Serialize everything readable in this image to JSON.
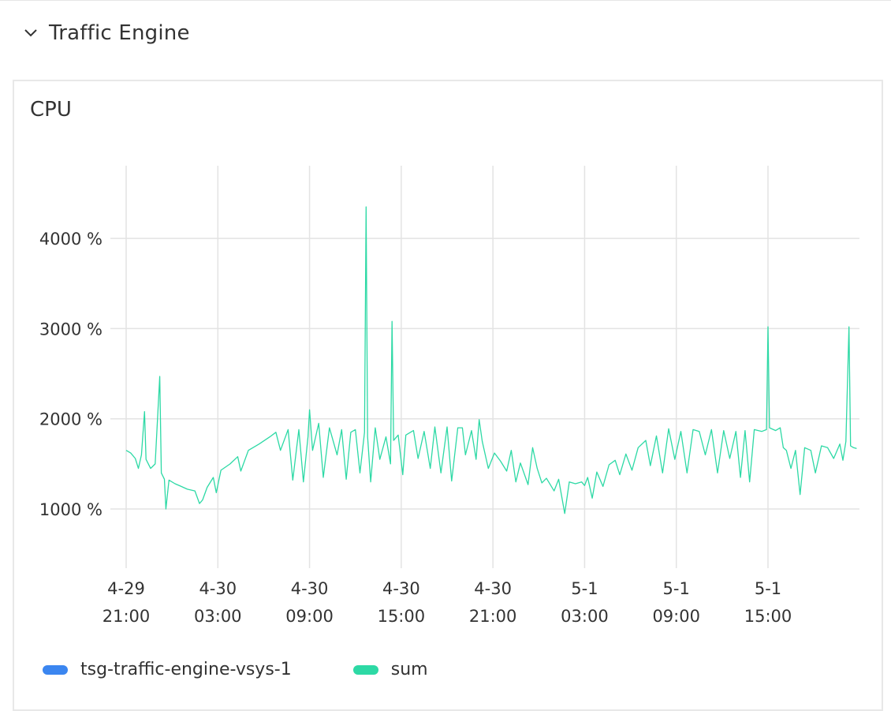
{
  "section": {
    "title": "Traffic Engine",
    "chevron_icon": "chevron-down-icon"
  },
  "panel": {
    "title": "CPU"
  },
  "colors": {
    "series_blue": "#3b86f0",
    "series_green": "#2dd9a5",
    "grid": "#e3e3e3"
  },
  "chart_data": {
    "type": "line",
    "title": "CPU",
    "xlabel": "",
    "ylabel": "",
    "y_unit": "%",
    "ylim": [
      200,
      4800
    ],
    "yticks": [
      {
        "value": 1000,
        "label": "1000 %"
      },
      {
        "value": 2000,
        "label": "2000 %"
      },
      {
        "value": 3000,
        "label": "3000 %"
      },
      {
        "value": 4000,
        "label": "4000 %"
      }
    ],
    "xlim": [
      "2024-04-29 21:00",
      "2024-05-01 23:00"
    ],
    "xticks": [
      {
        "date": "4-29",
        "time": "21:00",
        "hours": 0
      },
      {
        "date": "4-30",
        "time": "03:00",
        "hours": 6
      },
      {
        "date": "4-30",
        "time": "09:00",
        "hours": 12
      },
      {
        "date": "4-30",
        "time": "15:00",
        "hours": 18
      },
      {
        "date": "4-30",
        "time": "21:00",
        "hours": 24
      },
      {
        "date": "5-1",
        "time": "03:00",
        "hours": 30
      },
      {
        "date": "5-1",
        "time": "09:00",
        "hours": 36
      },
      {
        "date": "5-1",
        "time": "15:00",
        "hours": 42
      }
    ],
    "grid": true,
    "legend_position": "bottom-left",
    "series": [
      {
        "name": "tsg-traffic-engine-vsys-1",
        "color": "#3b86f0",
        "points": []
      },
      {
        "name": "sum",
        "color": "#2dd9a5",
        "points": [
          [
            0.0,
            1650
          ],
          [
            0.3,
            1620
          ],
          [
            0.6,
            1560
          ],
          [
            0.8,
            1450
          ],
          [
            1.0,
            1600
          ],
          [
            1.2,
            2080
          ],
          [
            1.3,
            1550
          ],
          [
            1.6,
            1450
          ],
          [
            1.9,
            1500
          ],
          [
            2.2,
            2470
          ],
          [
            2.3,
            1400
          ],
          [
            2.5,
            1330
          ],
          [
            2.6,
            1000
          ],
          [
            2.8,
            1320
          ],
          [
            3.2,
            1280
          ],
          [
            3.6,
            1250
          ],
          [
            4.0,
            1220
          ],
          [
            4.5,
            1200
          ],
          [
            4.8,
            1060
          ],
          [
            5.0,
            1100
          ],
          [
            5.3,
            1240
          ],
          [
            5.7,
            1350
          ],
          [
            5.9,
            1180
          ],
          [
            6.2,
            1430
          ],
          [
            6.8,
            1500
          ],
          [
            7.3,
            1580
          ],
          [
            7.5,
            1420
          ],
          [
            8.0,
            1650
          ],
          [
            8.7,
            1720
          ],
          [
            9.4,
            1800
          ],
          [
            9.8,
            1850
          ],
          [
            10.1,
            1650
          ],
          [
            10.6,
            1880
          ],
          [
            10.9,
            1320
          ],
          [
            11.3,
            1880
          ],
          [
            11.6,
            1300
          ],
          [
            11.9,
            1800
          ],
          [
            12.0,
            2100
          ],
          [
            12.2,
            1650
          ],
          [
            12.6,
            1950
          ],
          [
            12.9,
            1350
          ],
          [
            13.3,
            1900
          ],
          [
            13.8,
            1600
          ],
          [
            14.1,
            1880
          ],
          [
            14.4,
            1330
          ],
          [
            14.7,
            1850
          ],
          [
            15.0,
            1880
          ],
          [
            15.3,
            1400
          ],
          [
            15.6,
            1850
          ],
          [
            15.7,
            4350
          ],
          [
            15.8,
            1800
          ],
          [
            16.0,
            1300
          ],
          [
            16.3,
            1900
          ],
          [
            16.6,
            1550
          ],
          [
            17.0,
            1800
          ],
          [
            17.3,
            1500
          ],
          [
            17.4,
            3080
          ],
          [
            17.5,
            1760
          ],
          [
            17.8,
            1820
          ],
          [
            18.1,
            1380
          ],
          [
            18.3,
            1820
          ],
          [
            18.8,
            1870
          ],
          [
            19.1,
            1560
          ],
          [
            19.5,
            1860
          ],
          [
            19.9,
            1450
          ],
          [
            20.2,
            1910
          ],
          [
            20.6,
            1400
          ],
          [
            21.0,
            1910
          ],
          [
            21.3,
            1310
          ],
          [
            21.7,
            1900
          ],
          [
            22.0,
            1900
          ],
          [
            22.2,
            1600
          ],
          [
            22.6,
            1870
          ],
          [
            22.9,
            1550
          ],
          [
            23.1,
            1990
          ],
          [
            23.3,
            1750
          ],
          [
            23.7,
            1450
          ],
          [
            24.1,
            1620
          ],
          [
            24.5,
            1530
          ],
          [
            24.9,
            1420
          ],
          [
            25.2,
            1650
          ],
          [
            25.5,
            1300
          ],
          [
            25.8,
            1510
          ],
          [
            26.3,
            1270
          ],
          [
            26.6,
            1680
          ],
          [
            26.9,
            1450
          ],
          [
            27.2,
            1290
          ],
          [
            27.5,
            1340
          ],
          [
            28.0,
            1200
          ],
          [
            28.3,
            1330
          ],
          [
            28.7,
            950
          ],
          [
            29.0,
            1300
          ],
          [
            29.4,
            1280
          ],
          [
            29.8,
            1300
          ],
          [
            30.0,
            1260
          ],
          [
            30.2,
            1350
          ],
          [
            30.5,
            1120
          ],
          [
            30.8,
            1410
          ],
          [
            31.2,
            1250
          ],
          [
            31.6,
            1490
          ],
          [
            32.0,
            1540
          ],
          [
            32.3,
            1380
          ],
          [
            32.7,
            1610
          ],
          [
            33.1,
            1430
          ],
          [
            33.5,
            1680
          ],
          [
            34.0,
            1760
          ],
          [
            34.3,
            1480
          ],
          [
            34.7,
            1810
          ],
          [
            35.1,
            1400
          ],
          [
            35.5,
            1890
          ],
          [
            35.9,
            1550
          ],
          [
            36.3,
            1860
          ],
          [
            36.7,
            1400
          ],
          [
            37.1,
            1880
          ],
          [
            37.5,
            1860
          ],
          [
            37.9,
            1600
          ],
          [
            38.3,
            1880
          ],
          [
            38.7,
            1400
          ],
          [
            39.1,
            1870
          ],
          [
            39.5,
            1560
          ],
          [
            39.9,
            1860
          ],
          [
            40.2,
            1350
          ],
          [
            40.5,
            1870
          ],
          [
            40.8,
            1300
          ],
          [
            41.1,
            1880
          ],
          [
            41.6,
            1860
          ],
          [
            41.9,
            1880
          ],
          [
            42.0,
            3020
          ],
          [
            42.1,
            1900
          ],
          [
            42.5,
            1870
          ],
          [
            42.8,
            1900
          ],
          [
            43.0,
            1680
          ],
          [
            43.2,
            1650
          ],
          [
            43.5,
            1450
          ],
          [
            43.8,
            1650
          ],
          [
            44.1,
            1160
          ],
          [
            44.4,
            1680
          ],
          [
            44.8,
            1650
          ],
          [
            45.1,
            1400
          ],
          [
            45.5,
            1700
          ],
          [
            45.9,
            1680
          ],
          [
            46.3,
            1560
          ],
          [
            46.7,
            1720
          ],
          [
            46.9,
            1540
          ],
          [
            47.1,
            1750
          ],
          [
            47.3,
            3020
          ],
          [
            47.4,
            1700
          ],
          [
            47.6,
            1680
          ],
          [
            47.8,
            1670
          ]
        ]
      }
    ]
  }
}
